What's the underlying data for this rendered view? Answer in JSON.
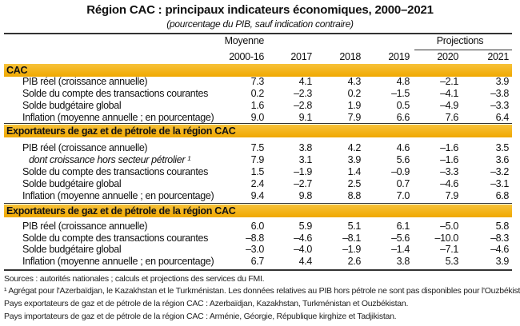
{
  "title": "Région CAC : principaux indicateurs économiques, 2000–2021",
  "subtitle": "(pourcentage du PIB, sauf indication contraire)",
  "header": {
    "avg_label": "Moyenne",
    "projections_label": "Projections",
    "columns": [
      "2000-16",
      "2017",
      "2018",
      "2019",
      "2020",
      "2021"
    ]
  },
  "sections": [
    {
      "label": "CAC",
      "rows": [
        {
          "label": "PIB réel (croissance annuelle)",
          "values": [
            "7.3",
            "4.1",
            "4.3",
            "4.8",
            "–2.1",
            "3.9"
          ]
        },
        {
          "label": "Solde du compte des transactions courantes",
          "values": [
            "0.2",
            "–2.3",
            "0.2",
            "–1.5",
            "–4.1",
            "–3.8"
          ]
        },
        {
          "label": "Solde budgétaire global",
          "values": [
            "1.6",
            "–2.8",
            "1.9",
            "0.5",
            "–4.9",
            "–3.3"
          ]
        },
        {
          "label": "Inflation (moyenne annuelle ; en pourcentage)",
          "values": [
            "9.0",
            "9.1",
            "7.9",
            "6.6",
            "7.6",
            "6.4"
          ]
        }
      ]
    },
    {
      "label": "Exportateurs de gaz et de pétrole de la région CAC",
      "rows": [
        {
          "label": "PIB réel (croissance annuelle)",
          "values": [
            "7.5",
            "3.8",
            "4.2",
            "4.6",
            "–1.6",
            "3.5"
          ]
        },
        {
          "label": "dont croissance hors secteur pétrolier ¹",
          "italic": true,
          "values": [
            "7.9",
            "3.1",
            "3.9",
            "5.6",
            "–1.6",
            "3.6"
          ]
        },
        {
          "label": "Solde du compte des transactions courantes",
          "values": [
            "1.5",
            "–1.9",
            "1.4",
            "–0.9",
            "–3.3",
            "–3.2"
          ]
        },
        {
          "label": "Solde budgétaire global",
          "values": [
            "2.4",
            "–2.7",
            "2.5",
            "0.7",
            "–4.6",
            "–3.1"
          ]
        },
        {
          "label": "Inflation (moyenne annuelle ; en pourcentage)",
          "values": [
            "9.4",
            "9.8",
            "8.8",
            "7.0",
            "7.9",
            "6.8"
          ]
        }
      ]
    },
    {
      "label": "Exportateurs de gaz et de pétrole de la région CAC",
      "rows": [
        {
          "label": "PIB réel (croissance annuelle)",
          "values": [
            "6.0",
            "5.9",
            "5.1",
            "6.1",
            "–5.0",
            "5.8"
          ]
        },
        {
          "label": "Solde du compte des transactions courantes",
          "values": [
            "–8.8",
            "–4.6",
            "–8.1",
            "–5.6",
            "–10.0",
            "–8.3"
          ]
        },
        {
          "label": "Solde budgétaire global",
          "values": [
            "–3.0",
            "–4.0",
            "–1.9",
            "–1.4",
            "–7.1",
            "–4.6"
          ]
        },
        {
          "label": "Inflation (moyenne annuelle ; en pourcentage)",
          "values": [
            "6.7",
            "4.4",
            "2.6",
            "3.8",
            "5.3",
            "3.9"
          ]
        }
      ]
    }
  ],
  "footnotes": [
    "Sources : autorités nationales ; calculs et projections des services du FMI.",
    "¹ Agrégat pour l'Azerbaïdjan, le Kazakhstan et le Turkménistan. Les données relatives au PIB hors pétrole ne sont pas disponibles pour l'Ouzbékistan.",
    "Pays exportateurs de gaz et de pétrole de la région CAC : Azerbaïdjan, Kazakhstan, Turkménistan et Ouzbékistan.",
    "Pays importateurs de gaz et de pétrole de la région CAC : Arménie, Géorgie, République kirghize et Tadjikistan."
  ],
  "colors": {
    "band": "#f0a800"
  }
}
